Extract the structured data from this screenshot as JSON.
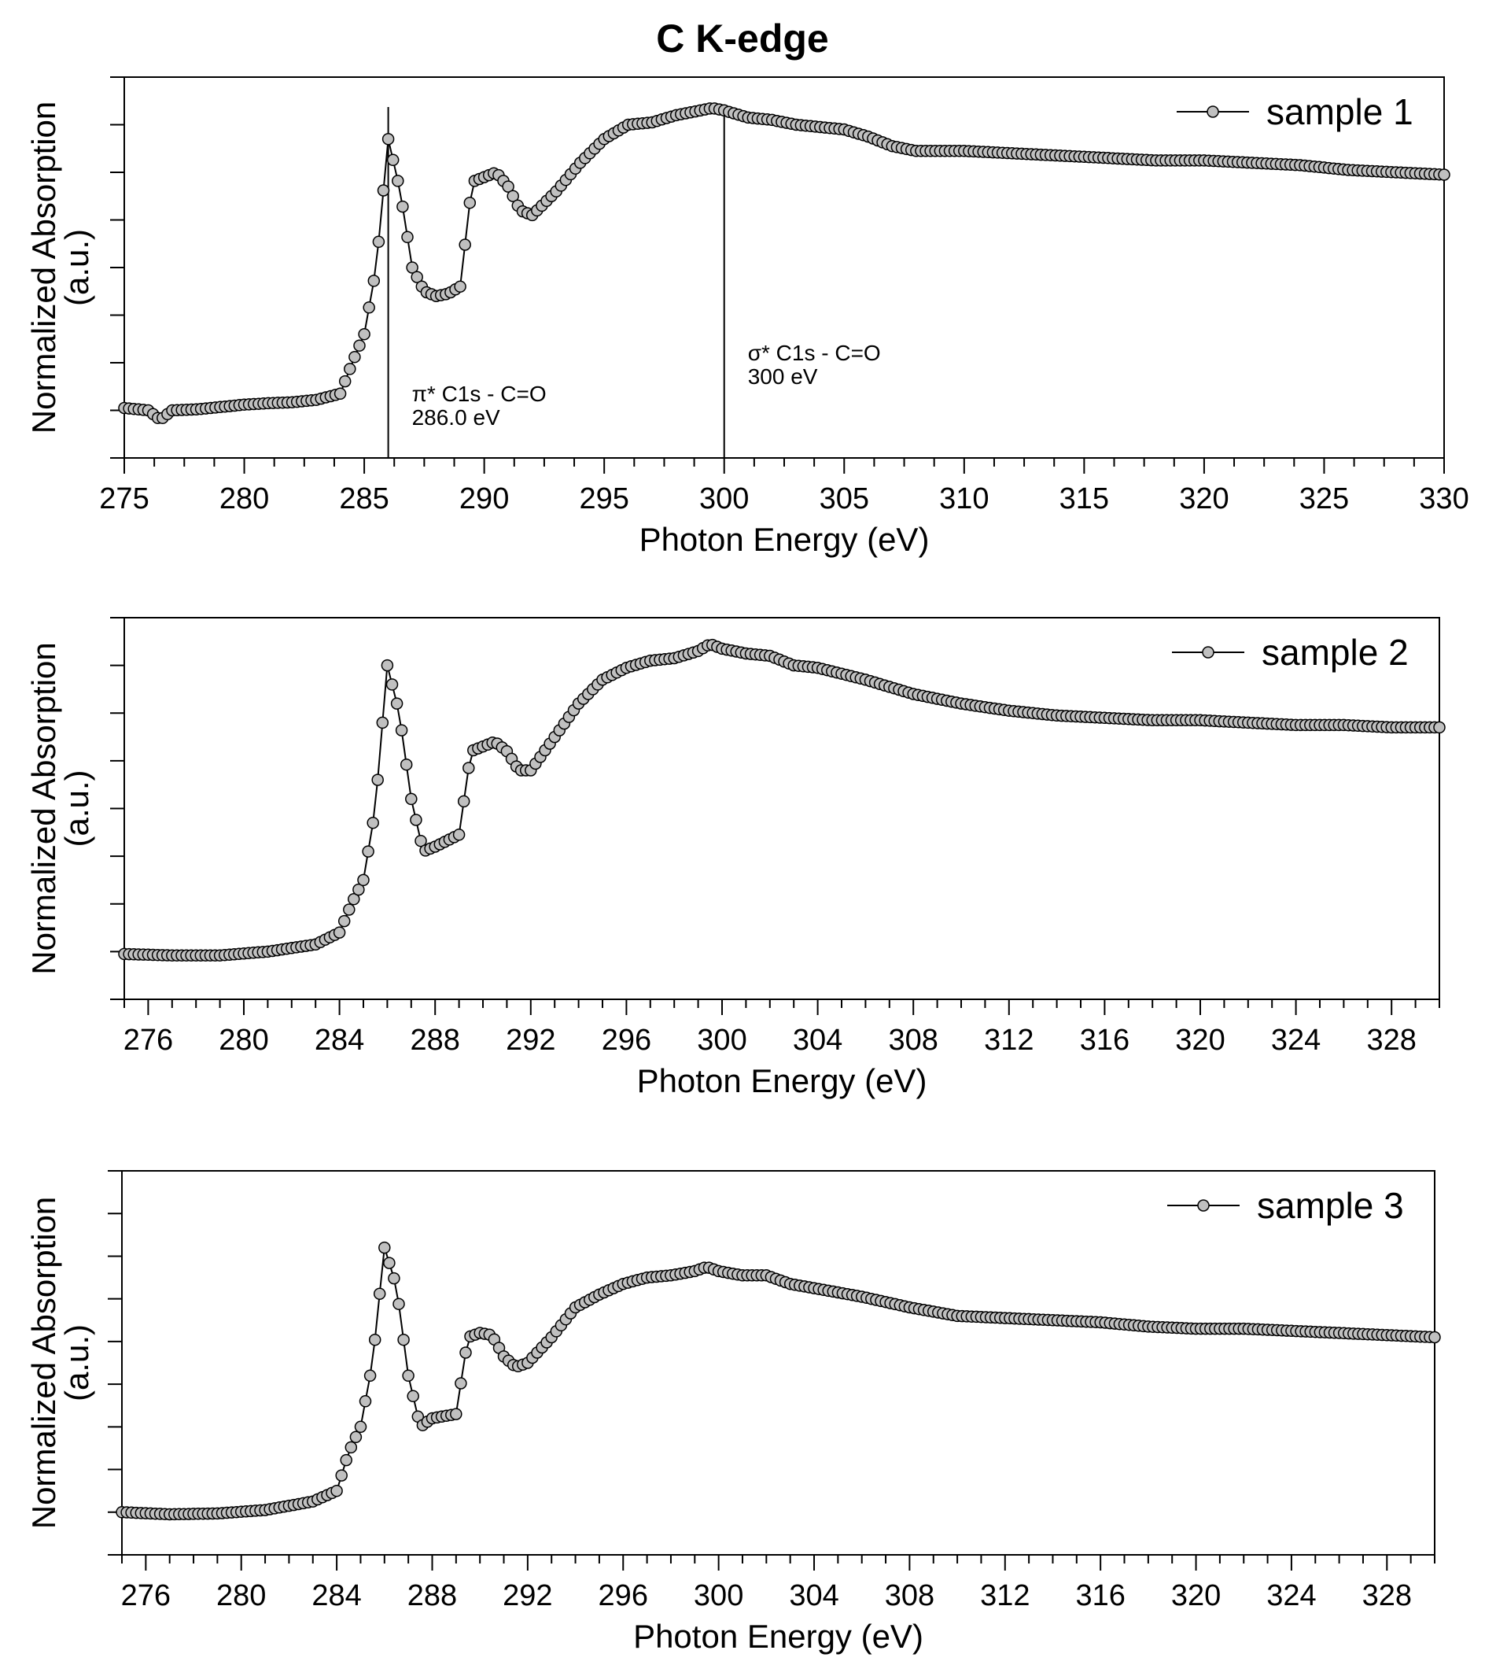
{
  "chart_data": {
    "type": "line",
    "title": "C K-edge",
    "panels": [
      {
        "name": "sample-1",
        "legend": "sample 1",
        "xlabel": "Photon Energy (eV)",
        "ylabel_line1": "Normalized Absorption",
        "ylabel_line2": "(a.u.)",
        "xlim": [
          275,
          330
        ],
        "ylim": [
          0,
          8
        ],
        "x_ticks": [
          275,
          280,
          285,
          290,
          295,
          300,
          305,
          310,
          315,
          320,
          325,
          330
        ],
        "x_tick_labels": [
          "275",
          "280",
          "285",
          "290",
          "295",
          "300",
          "305",
          "310",
          "315",
          "320",
          "325",
          "330"
        ],
        "y_ticks": [
          0,
          1,
          2,
          3,
          4,
          5,
          6,
          7,
          8
        ],
        "points": [
          [
            275,
            1.05
          ],
          [
            276,
            1.0
          ],
          [
            276.5,
            0.8
          ],
          [
            277,
            1.0
          ],
          [
            278,
            1.02
          ],
          [
            279,
            1.07
          ],
          [
            280,
            1.12
          ],
          [
            281,
            1.15
          ],
          [
            282,
            1.17
          ],
          [
            283,
            1.22
          ],
          [
            284,
            1.35
          ],
          [
            284.5,
            2.0
          ],
          [
            285,
            2.6
          ],
          [
            285.5,
            4.0
          ],
          [
            286,
            6.7
          ],
          [
            286.5,
            5.6
          ],
          [
            287,
            4.0
          ],
          [
            287.5,
            3.5
          ],
          [
            288,
            3.4
          ],
          [
            288.5,
            3.45
          ],
          [
            289,
            3.6
          ],
          [
            289.5,
            5.8
          ],
          [
            290,
            5.9
          ],
          [
            290.5,
            6.0
          ],
          [
            291,
            5.7
          ],
          [
            291.5,
            5.2
          ],
          [
            292,
            5.1
          ],
          [
            293,
            5.6
          ],
          [
            294,
            6.2
          ],
          [
            295,
            6.7
          ],
          [
            296,
            7.0
          ],
          [
            297,
            7.05
          ],
          [
            298,
            7.2
          ],
          [
            299,
            7.3
          ],
          [
            299.5,
            7.35
          ],
          [
            300,
            7.3
          ],
          [
            301,
            7.15
          ],
          [
            302,
            7.1
          ],
          [
            303,
            7.0
          ],
          [
            304,
            6.95
          ],
          [
            305,
            6.9
          ],
          [
            306,
            6.75
          ],
          [
            307,
            6.55
          ],
          [
            308,
            6.45
          ],
          [
            310,
            6.45
          ],
          [
            312,
            6.4
          ],
          [
            314,
            6.35
          ],
          [
            316,
            6.3
          ],
          [
            318,
            6.25
          ],
          [
            320,
            6.25
          ],
          [
            322,
            6.2
          ],
          [
            324,
            6.15
          ],
          [
            326,
            6.05
          ],
          [
            328,
            6.0
          ],
          [
            330,
            5.95
          ]
        ],
        "annotations": [
          {
            "x": 286.0,
            "line1": "π* C1s - C=O",
            "line2": "286.0 eV"
          },
          {
            "x": 300,
            "line1": "σ* C1s - C=O",
            "line2": "300 eV"
          }
        ]
      },
      {
        "name": "sample-2",
        "legend": "sample 2",
        "xlabel": "Photon Energy (eV)",
        "ylabel_line1": "Normalized Absorption",
        "ylabel_line2": "(a.u.)",
        "xlim": [
          275,
          330
        ],
        "ylim": [
          0,
          8
        ],
        "x_ticks": [
          276,
          280,
          284,
          288,
          292,
          296,
          300,
          304,
          308,
          312,
          316,
          320,
          324,
          328
        ],
        "x_tick_labels": [
          "276",
          "280",
          "284",
          "288",
          "292",
          "296",
          "300",
          "304",
          "308",
          "312",
          "316",
          "320",
          "324",
          "328"
        ],
        "y_ticks": [
          0,
          1,
          2,
          3,
          4,
          5,
          6,
          7,
          8
        ],
        "points": [
          [
            275,
            0.95
          ],
          [
            277,
            0.92
          ],
          [
            279,
            0.92
          ],
          [
            281,
            1.0
          ],
          [
            283,
            1.15
          ],
          [
            284,
            1.4
          ],
          [
            284.5,
            2.0
          ],
          [
            285,
            2.5
          ],
          [
            285.5,
            4.0
          ],
          [
            286,
            7.0
          ],
          [
            286.5,
            6.0
          ],
          [
            287,
            4.2
          ],
          [
            287.5,
            3.1
          ],
          [
            288,
            3.2
          ],
          [
            289,
            3.45
          ],
          [
            289.5,
            5.2
          ],
          [
            290,
            5.3
          ],
          [
            290.5,
            5.4
          ],
          [
            291,
            5.2
          ],
          [
            291.5,
            4.8
          ],
          [
            292,
            4.8
          ],
          [
            293,
            5.5
          ],
          [
            294,
            6.2
          ],
          [
            295,
            6.7
          ],
          [
            296,
            6.95
          ],
          [
            297,
            7.1
          ],
          [
            298,
            7.15
          ],
          [
            299,
            7.3
          ],
          [
            299.5,
            7.45
          ],
          [
            300,
            7.35
          ],
          [
            301,
            7.25
          ],
          [
            302,
            7.2
          ],
          [
            303,
            7.0
          ],
          [
            304,
            6.95
          ],
          [
            306,
            6.7
          ],
          [
            308,
            6.4
          ],
          [
            310,
            6.2
          ],
          [
            312,
            6.05
          ],
          [
            314,
            5.95
          ],
          [
            316,
            5.9
          ],
          [
            318,
            5.85
          ],
          [
            320,
            5.85
          ],
          [
            322,
            5.8
          ],
          [
            324,
            5.75
          ],
          [
            326,
            5.75
          ],
          [
            328,
            5.7
          ],
          [
            330,
            5.7
          ]
        ],
        "annotations": []
      },
      {
        "name": "sample-3",
        "legend": "sample 3",
        "xlabel": "Photon Energy (eV)",
        "ylabel_line1": "Normalized Absorption",
        "ylabel_line2": "(a.u.)",
        "xlim": [
          275,
          330
        ],
        "ylim": [
          0,
          9
        ],
        "x_ticks": [
          276,
          280,
          284,
          288,
          292,
          296,
          300,
          304,
          308,
          312,
          316,
          320,
          324,
          328
        ],
        "x_tick_labels": [
          "276",
          "280",
          "284",
          "288",
          "292",
          "296",
          "300",
          "304",
          "308",
          "312",
          "316",
          "320",
          "324",
          "328"
        ],
        "y_ticks": [
          0,
          1,
          2,
          3,
          4,
          5,
          6,
          7,
          8,
          9
        ],
        "points": [
          [
            275,
            1.0
          ],
          [
            277,
            0.95
          ],
          [
            279,
            0.97
          ],
          [
            281,
            1.05
          ],
          [
            283,
            1.25
          ],
          [
            284,
            1.5
          ],
          [
            284.5,
            2.4
          ],
          [
            285,
            3.0
          ],
          [
            285.5,
            4.5
          ],
          [
            286,
            7.2
          ],
          [
            286.5,
            6.3
          ],
          [
            287,
            4.2
          ],
          [
            287.5,
            3.0
          ],
          [
            288,
            3.2
          ],
          [
            289,
            3.3
          ],
          [
            289.5,
            5.1
          ],
          [
            290,
            5.2
          ],
          [
            290.5,
            5.15
          ],
          [
            291,
            4.65
          ],
          [
            291.5,
            4.4
          ],
          [
            292,
            4.5
          ],
          [
            293,
            5.1
          ],
          [
            294,
            5.8
          ],
          [
            295,
            6.1
          ],
          [
            296,
            6.35
          ],
          [
            297,
            6.5
          ],
          [
            298,
            6.55
          ],
          [
            299,
            6.65
          ],
          [
            299.5,
            6.75
          ],
          [
            300,
            6.65
          ],
          [
            301,
            6.55
          ],
          [
            302,
            6.55
          ],
          [
            303,
            6.35
          ],
          [
            304,
            6.25
          ],
          [
            306,
            6.05
          ],
          [
            308,
            5.8
          ],
          [
            310,
            5.6
          ],
          [
            312,
            5.55
          ],
          [
            314,
            5.5
          ],
          [
            316,
            5.45
          ],
          [
            318,
            5.35
          ],
          [
            320,
            5.3
          ],
          [
            322,
            5.3
          ],
          [
            324,
            5.25
          ],
          [
            326,
            5.2
          ],
          [
            328,
            5.15
          ],
          [
            330,
            5.1
          ]
        ],
        "annotations": []
      }
    ]
  }
}
